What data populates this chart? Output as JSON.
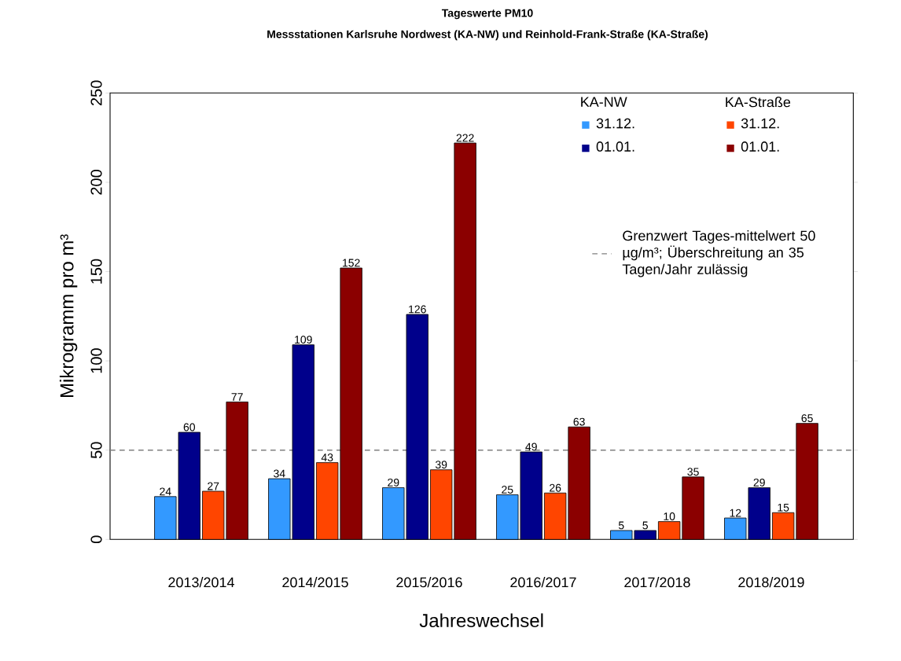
{
  "chart_data": {
    "type": "bar",
    "title": "Tageswerte PM10",
    "subtitle": "Messstationen Karlsruhe Nordwest (KA-NW) und Reinhold-Frank-Straße (KA-Straße)",
    "xlabel": "Jahreswechsel",
    "ylabel": "Mikrogramm pro m³",
    "categories": [
      "2013/2014",
      "2014/2015",
      "2015/2016",
      "2016/2017",
      "2017/2018",
      "2018/2019"
    ],
    "series": [
      {
        "name": "31.12.",
        "color": "#3399ff",
        "values": [
          24,
          34,
          29,
          25,
          5,
          12
        ]
      },
      {
        "name": "01.01.",
        "color": "#00008b",
        "values": [
          60,
          109,
          126,
          49,
          5,
          29
        ]
      },
      {
        "name": "31.12.",
        "color": "#ff4500",
        "values": [
          27,
          43,
          39,
          26,
          10,
          15
        ]
      },
      {
        "name": "01.01.",
        "color": "#8b0000",
        "values": [
          77,
          152,
          222,
          63,
          35,
          65
        ]
      }
    ],
    "annotations": [
      "KA-NW",
      "KA-Straße"
    ],
    "ref_lines": [
      {
        "axis": "y",
        "value": 50,
        "label": "Grenzwert Tages-mittelwert 50 µg/m³; Überschreitung an 35 Tagen/Jahr zulässig",
        "color": "#808080",
        "line_style": "dashed"
      }
    ],
    "ylim": [
      0,
      250
    ],
    "yticks": [
      0,
      50,
      100,
      150,
      200,
      250
    ],
    "data_labels": true,
    "legend": "top right",
    "grid": false
  }
}
